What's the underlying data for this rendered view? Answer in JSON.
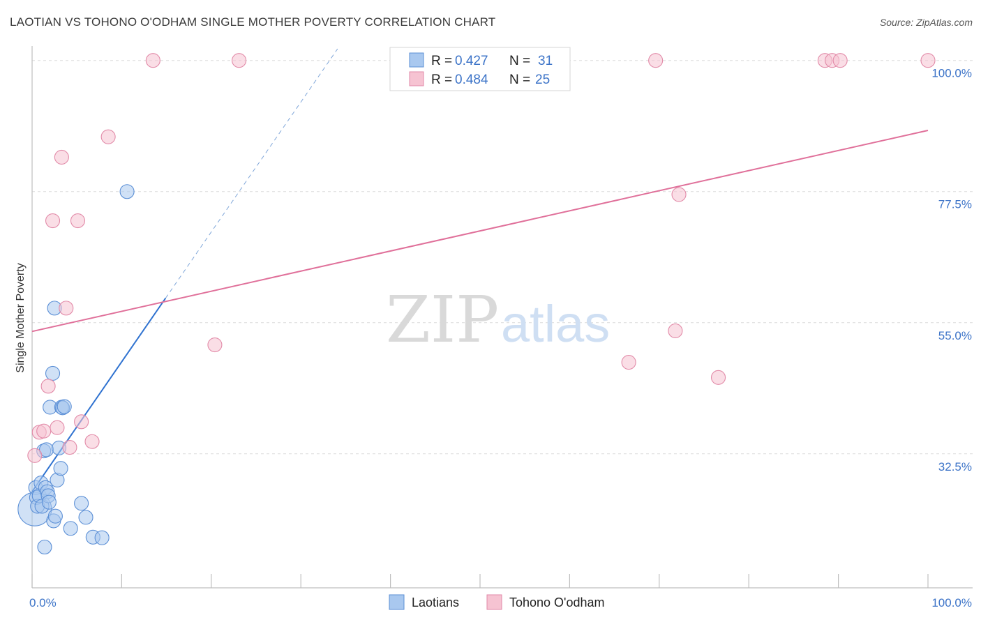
{
  "title": "LAOTIAN VS TOHONO O'ODHAM SINGLE MOTHER POVERTY CORRELATION CHART",
  "source": "Source: ZipAtlas.com",
  "watermark": {
    "zip": "ZIP",
    "atlas": "atlas"
  },
  "colors": {
    "blue_fill": "#a9c8ef",
    "blue_stroke": "#5b8fd6",
    "blue_line": "#2f72d0",
    "pink_fill": "#f6c3d2",
    "pink_stroke": "#e28aa8",
    "pink_line": "#e0709a",
    "tick_text": "#3d74c8",
    "grid": "#dcdcdc"
  },
  "legend": {
    "r_label": "R =",
    "n_label": "N =",
    "rows": [
      {
        "series": "Laotians",
        "r": "0.427",
        "n": "31"
      },
      {
        "series": "Tohono O'odham",
        "r": "0.484",
        "n": "25"
      }
    ]
  },
  "chart_data": {
    "type": "scatter",
    "title": "LAOTIAN VS TOHONO O'ODHAM SINGLE MOTHER POVERTY CORRELATION CHART",
    "xlabel": "",
    "ylabel": "Single Mother Poverty",
    "xlim": [
      0,
      100
    ],
    "ylim": [
      9.5,
      102
    ],
    "x_tick_labels": [
      "0.0%",
      "100.0%"
    ],
    "y_ticks": [
      32.5,
      55.0,
      77.5,
      100.0
    ],
    "y_tick_labels": [
      "32.5%",
      "55.0%",
      "77.5%",
      "100.0%"
    ],
    "grid": true,
    "legend_position": "bottom",
    "series": [
      {
        "name": "Laotians",
        "x": [
          0.3,
          0.4,
          0.5,
          0.6,
          0.8,
          1.0,
          1.1,
          1.3,
          1.4,
          1.5,
          1.6,
          1.7,
          1.8,
          1.9,
          2.0,
          2.3,
          2.4,
          2.5,
          2.6,
          2.8,
          3.0,
          3.2,
          3.3,
          3.4,
          3.6,
          4.3,
          5.5,
          6.0,
          6.8,
          7.8,
          10.6
        ],
        "y": [
          23.0,
          26.7,
          25.0,
          23.5,
          25.3,
          27.5,
          23.5,
          33.0,
          16.5,
          26.7,
          33.2,
          26.0,
          25.3,
          24.2,
          40.5,
          46.3,
          21.0,
          57.5,
          21.8,
          28.0,
          33.5,
          30.0,
          40.5,
          40.4,
          40.6,
          19.7,
          24.0,
          21.6,
          18.2,
          18.1,
          77.5
        ],
        "sizes": [
          24,
          10,
          10,
          10,
          10,
          10,
          10,
          10,
          10,
          10,
          10,
          10,
          10,
          10,
          10,
          10,
          10,
          10,
          10,
          10,
          10,
          10,
          10,
          10,
          10,
          10,
          10,
          10,
          10,
          10,
          10
        ]
      },
      {
        "name": "Tohono O'odham",
        "x": [
          0.3,
          0.8,
          1.3,
          1.8,
          2.3,
          2.8,
          3.3,
          3.8,
          4.2,
          5.1,
          5.5,
          6.7,
          8.5,
          13.5,
          20.4,
          23.1,
          66.6,
          69.6,
          71.8,
          72.2,
          76.6,
          88.5,
          89.3,
          90.2,
          100.0
        ],
        "y": [
          32.2,
          36.2,
          36.4,
          44.1,
          72.5,
          37.0,
          83.4,
          57.5,
          33.6,
          72.5,
          38.0,
          34.6,
          86.9,
          100.0,
          51.2,
          100.0,
          48.2,
          100.0,
          53.6,
          77.0,
          45.6,
          100.0,
          100.0,
          100.0,
          100.0
        ],
        "sizes": [
          10,
          10,
          10,
          10,
          10,
          10,
          10,
          10,
          10,
          10,
          10,
          10,
          10,
          10,
          10,
          10,
          10,
          10,
          10,
          10,
          10,
          10,
          10,
          10,
          10
        ]
      }
    ],
    "trend_lines": [
      {
        "series": "Laotians",
        "solid_x": [
          0.0,
          14.9
        ],
        "x": [
          0.0,
          34.1
        ],
        "y": [
          26.0,
          102.0
        ]
      },
      {
        "series": "Tohono O'odham",
        "x": [
          0.0,
          100.0
        ],
        "y": [
          53.5,
          88.0
        ]
      }
    ]
  }
}
